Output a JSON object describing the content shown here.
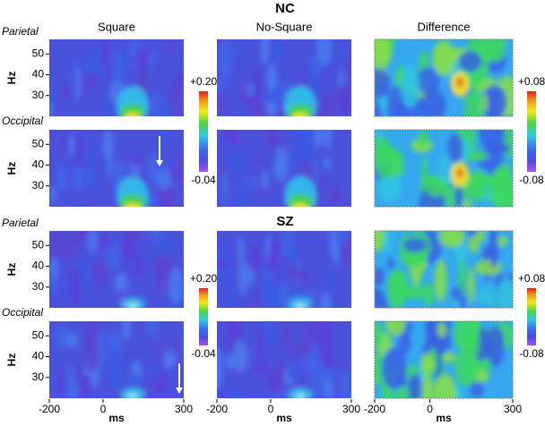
{
  "chart_data": {
    "type": "heatmap",
    "groups": [
      "NC",
      "SZ"
    ],
    "columns": [
      "Square",
      "No-Square",
      "Difference"
    ],
    "rows": [
      "Parietal",
      "Occipital"
    ],
    "y_label": "Hz",
    "x_label": "ms",
    "xlim": [
      -200,
      300
    ],
    "xticks": [
      -200,
      0,
      300
    ],
    "ylim": [
      20,
      57
    ],
    "yticks": [
      30,
      40,
      50
    ],
    "colorbars": [
      {
        "ticks": [
          {
            "value": 0.2,
            "label": "+0.20"
          },
          {
            "value": -0.04,
            "label": "-0.04"
          }
        ]
      },
      {
        "ticks": [
          {
            "value": 0.08,
            "label": "+0.08"
          },
          {
            "value": -0.08,
            "label": "-0.08"
          }
        ]
      }
    ]
  }
}
